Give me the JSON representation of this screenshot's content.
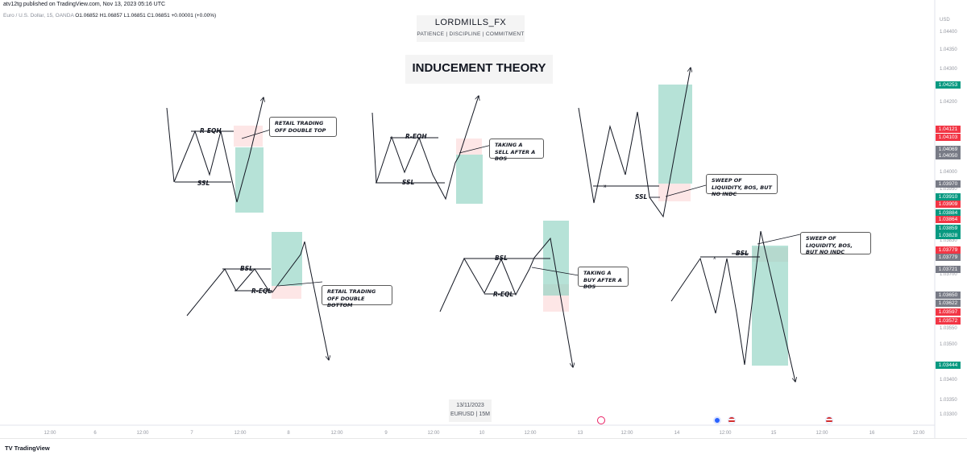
{
  "header": {
    "published": "atv12tg published on TradingView.com, Nov 13, 2023 05:16 UTC",
    "symbol": "Euro / U.S. Dollar, 15, OANDA",
    "ohlc": "O1.06852 H1.06857 L1.06851 C1.06851 +0.00001 (+0.00%)"
  },
  "brand": {
    "name": "LORDMILLS_FX",
    "tagline": "PATIENCE | DISCIPLINE | COMMITMENT"
  },
  "title": "INDUCEMENT THEORY",
  "price_axis": {
    "currency": "USD",
    "ticks": [
      "1.04400",
      "1.04350",
      "1.04300",
      "1.04200",
      "1.04000",
      "1.03950",
      "1.03830",
      "1.03700",
      "1.03550",
      "1.03500",
      "1.03400",
      "1.03350",
      "1.03300"
    ],
    "labels": [
      {
        "value": "1.04253",
        "color": "#089981"
      },
      {
        "value": "1.04121",
        "color": "#f23645"
      },
      {
        "value": "1.04103",
        "color": "#f23645"
      },
      {
        "value": "1.04069",
        "color": "#787b86"
      },
      {
        "value": "1.04050",
        "color": "#787b86"
      },
      {
        "value": "1.03970",
        "color": "#787b86"
      },
      {
        "value": "1.03910",
        "color": "#089981"
      },
      {
        "value": "1.03909",
        "color": "#f23645"
      },
      {
        "value": "1.03884",
        "color": "#089981"
      },
      {
        "value": "1.03864",
        "color": "#f23645"
      },
      {
        "value": "1.03859",
        "color": "#089981"
      },
      {
        "value": "1.03828",
        "color": "#089981"
      },
      {
        "value": "1.03779",
        "color": "#f23645"
      },
      {
        "value": "1.03779",
        "color": "#787b86"
      },
      {
        "value": "1.03721",
        "color": "#787b86"
      },
      {
        "value": "1.03650",
        "color": "#787b86"
      },
      {
        "value": "1.03622",
        "color": "#787b86"
      },
      {
        "value": "1.03597",
        "color": "#f23645"
      },
      {
        "value": "1.03572",
        "color": "#f23645"
      },
      {
        "value": "1.03444",
        "color": "#089981"
      }
    ]
  },
  "time_axis": {
    "ticks": [
      "12:00",
      "6",
      "12:00",
      "7",
      "12:00",
      "8",
      "12:00",
      "9",
      "12:00",
      "10",
      "12:00",
      "13",
      "12:00",
      "14",
      "12:00",
      "15",
      "12:00",
      "16",
      "12:00"
    ]
  },
  "date_box": {
    "date": "13/11/2023",
    "pair": "EURUSD | 15M"
  },
  "footer": {
    "logo": "TradingView"
  },
  "chart_data": {
    "type": "line",
    "title": "INDUCEMENT THEORY",
    "colors": {
      "line": "#131722",
      "target_zone": "#8fd3c1",
      "entry_zone": "#fde3e3"
    },
    "panels": [
      {
        "name": "sell-double-top",
        "levels": [
          "R-EQH",
          "SSL"
        ],
        "note": "RETAIL TRADING OFF DOUBLE TOP"
      },
      {
        "name": "sell-after-bos",
        "levels": [
          "R-EQH",
          "SSL"
        ],
        "note": "TAKING A SELL AFTER A BOS"
      },
      {
        "name": "sell-sweep",
        "levels": [
          "SSL"
        ],
        "note": "SWEEP OF LIQUIDITY, BOS, BUT NO INDC"
      },
      {
        "name": "buy-double-bottom",
        "levels": [
          "BSL",
          "R-EQL"
        ],
        "note": "RETAIL TRADING OFF DOUBLE BOTTOM"
      },
      {
        "name": "buy-after-bos",
        "levels": [
          "BSL",
          "R-EQL"
        ],
        "note": "TAKING A BUY AFTER A BOS"
      },
      {
        "name": "buy-sweep",
        "levels": [
          "BSL"
        ],
        "note": "SWEEP OF LIQUIDITY, BOS, BUT NO INDC"
      }
    ]
  }
}
